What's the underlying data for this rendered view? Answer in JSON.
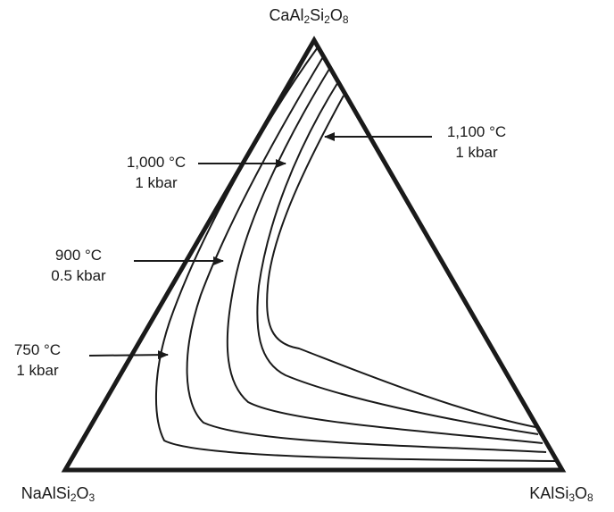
{
  "diagram": {
    "vertices": {
      "top": {
        "parts": [
          {
            "t": "CaAl"
          },
          {
            "s": "2"
          },
          {
            "t": "Si"
          },
          {
            "s": "2"
          },
          {
            "t": "O"
          },
          {
            "s": "8"
          }
        ]
      },
      "bottom_left": {
        "parts": [
          {
            "t": "NaAlSi"
          },
          {
            "s": "2"
          },
          {
            "t": "O"
          },
          {
            "s": "3"
          }
        ]
      },
      "bottom_right": {
        "parts": [
          {
            "t": "KAlSi"
          },
          {
            "s": "3"
          },
          {
            "t": "O"
          },
          {
            "s": "8"
          }
        ]
      }
    },
    "isotherms": [
      {
        "temperature": "750 °C",
        "pressure": "1 kbar"
      },
      {
        "temperature": "900 °C",
        "pressure": "0.5 kbar"
      },
      {
        "temperature": "1,000 °C",
        "pressure": "1 kbar"
      },
      {
        "temperature": "1,100 °C",
        "pressure": "1 kbar"
      }
    ],
    "colors": {
      "line": "#1a1a1a",
      "background": "#ffffff"
    }
  }
}
